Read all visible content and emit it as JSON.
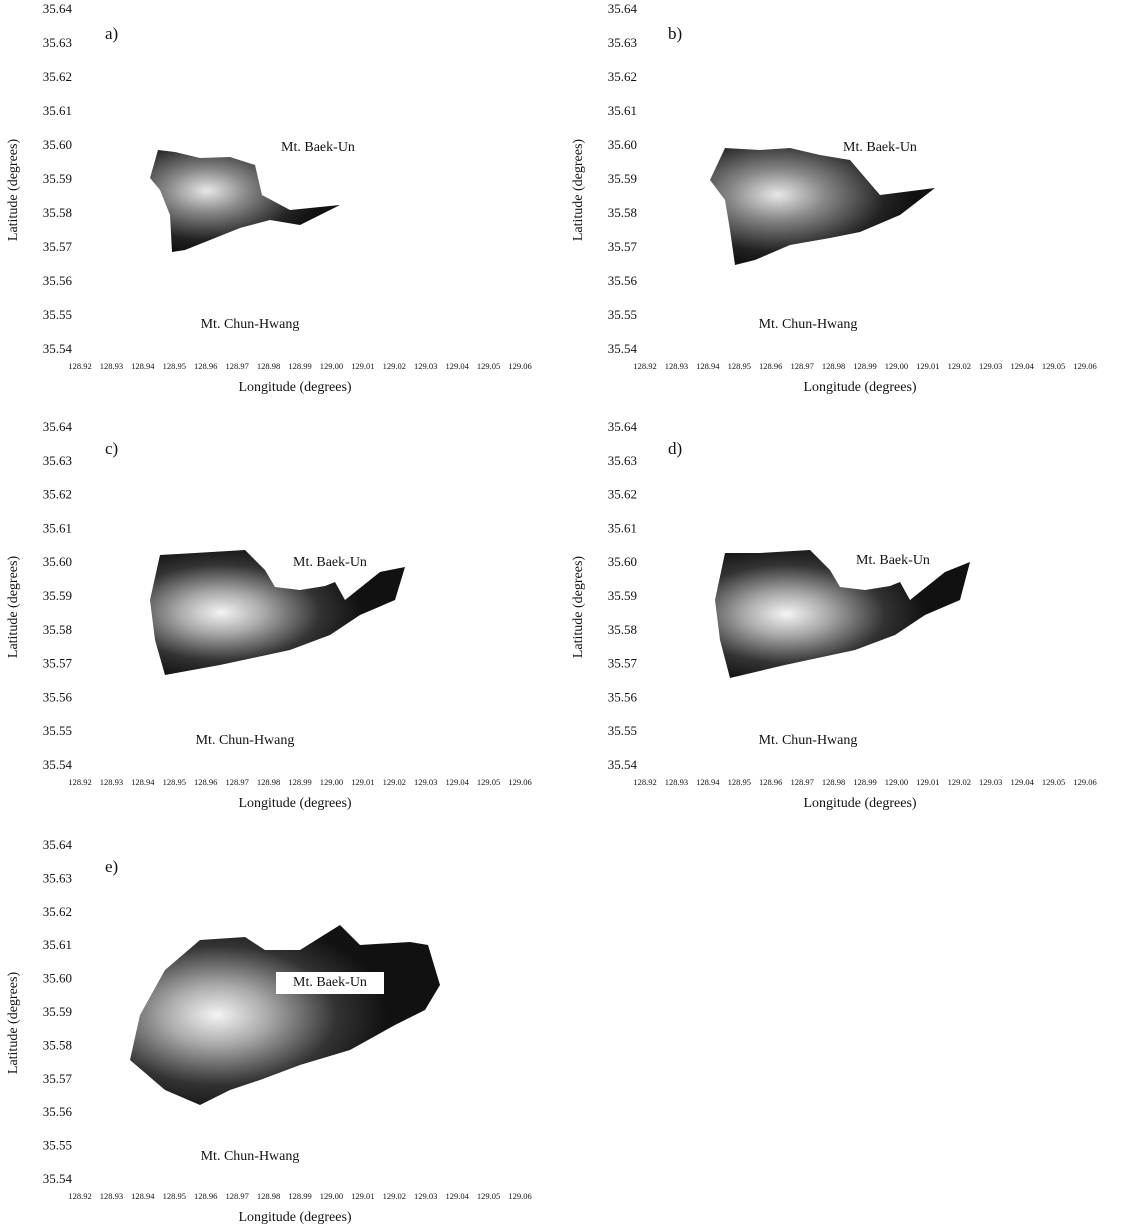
{
  "panels": [
    {
      "label": "a)",
      "annotations": [
        "Mt. Baek-Un",
        "Mt. Chun-Hwang"
      ],
      "xlabel": "Longitude (degrees)",
      "ylabel": "Latitude (degrees)",
      "xlim": [
        128.92,
        129.06
      ],
      "ylim": [
        35.54,
        35.64
      ],
      "xticks": [
        128.92,
        128.93,
        128.94,
        128.95,
        128.96,
        128.97,
        128.98,
        128.99,
        {
          "value": 129,
          "label": "129.00"
        },
        129.01,
        129.02,
        129.03,
        129.04,
        129.05,
        129.06
      ],
      "yticks": [
        35.54,
        35.55,
        35.56,
        35.57,
        35.58,
        35.59,
        {
          "value": 35.6,
          "label": "35.60"
        },
        35.61,
        35.62,
        35.63,
        35.64
      ]
    },
    {
      "label": "b)",
      "annotations": [
        "Mt. Baek-Un",
        "Mt. Chun-Hwang"
      ],
      "xlabel": "Longitude (degrees)",
      "ylabel": "Latitude (degrees)",
      "xlim": [
        128.92,
        129.06
      ],
      "ylim": [
        35.54,
        35.64
      ],
      "xticks": [
        128.92,
        128.93,
        128.94,
        128.95,
        128.96,
        128.97,
        128.98,
        128.99,
        {
          "value": 129,
          "label": "129.00"
        },
        129.01,
        129.02,
        129.03,
        129.04,
        129.05,
        129.06
      ],
      "yticks": [
        35.54,
        35.55,
        35.56,
        35.57,
        35.58,
        35.59,
        {
          "value": 35.6,
          "label": "35.60"
        },
        35.61,
        35.62,
        35.63,
        35.64
      ]
    },
    {
      "label": "c)",
      "annotations": [
        "Mt. Baek-Un",
        "Mt. Chun-Hwang"
      ],
      "xlabel": "Longitude (degrees)",
      "ylabel": "Latitude (degrees)",
      "xlim": [
        128.92,
        129.06
      ],
      "ylim": [
        35.54,
        35.64
      ],
      "xticks": [
        128.92,
        128.93,
        128.94,
        128.95,
        128.96,
        128.97,
        128.98,
        128.99,
        {
          "value": 129,
          "label": "129.00"
        },
        129.01,
        129.02,
        129.03,
        129.04,
        129.05,
        129.06
      ],
      "yticks": [
        35.54,
        35.55,
        35.56,
        35.57,
        35.58,
        35.59,
        {
          "value": 35.6,
          "label": "35.60"
        },
        35.61,
        35.62,
        35.63,
        35.64
      ]
    },
    {
      "label": "d)",
      "annotations": [
        "Mt. Baek-Un",
        "Mt. Chun-Hwang"
      ],
      "xlabel": "Longitude (degrees)",
      "ylabel": "Latitude (degrees)",
      "xlim": [
        128.92,
        129.06
      ],
      "ylim": [
        35.54,
        35.64
      ],
      "xticks": [
        128.92,
        128.93,
        128.94,
        128.95,
        128.96,
        128.97,
        128.98,
        128.99,
        {
          "value": 129,
          "label": "129.00"
        },
        129.01,
        129.02,
        129.03,
        129.04,
        129.05,
        129.06
      ],
      "yticks": [
        35.54,
        35.55,
        35.56,
        35.57,
        35.58,
        35.59,
        {
          "value": 35.6,
          "label": "35.60"
        },
        35.61,
        35.62,
        35.63,
        35.64
      ]
    },
    {
      "label": "e)",
      "annotations": [
        "Mt. Baek-Un",
        "Mt. Chun-Hwang"
      ],
      "xlabel": "Longitude (degrees)",
      "ylabel": "Latitude (degrees)",
      "xlim": [
        128.92,
        129.06
      ],
      "ylim": [
        35.54,
        35.64
      ],
      "xticks": [
        128.92,
        128.93,
        128.94,
        128.95,
        128.96,
        128.97,
        128.98,
        128.99,
        {
          "value": 129,
          "label": "129.00"
        },
        129.01,
        129.02,
        129.03,
        129.04,
        129.05,
        129.06
      ],
      "yticks": [
        35.54,
        35.55,
        35.56,
        35.57,
        35.58,
        35.59,
        {
          "value": 35.6,
          "label": "35.60"
        },
        35.61,
        35.62,
        35.63,
        35.64
      ]
    }
  ]
}
